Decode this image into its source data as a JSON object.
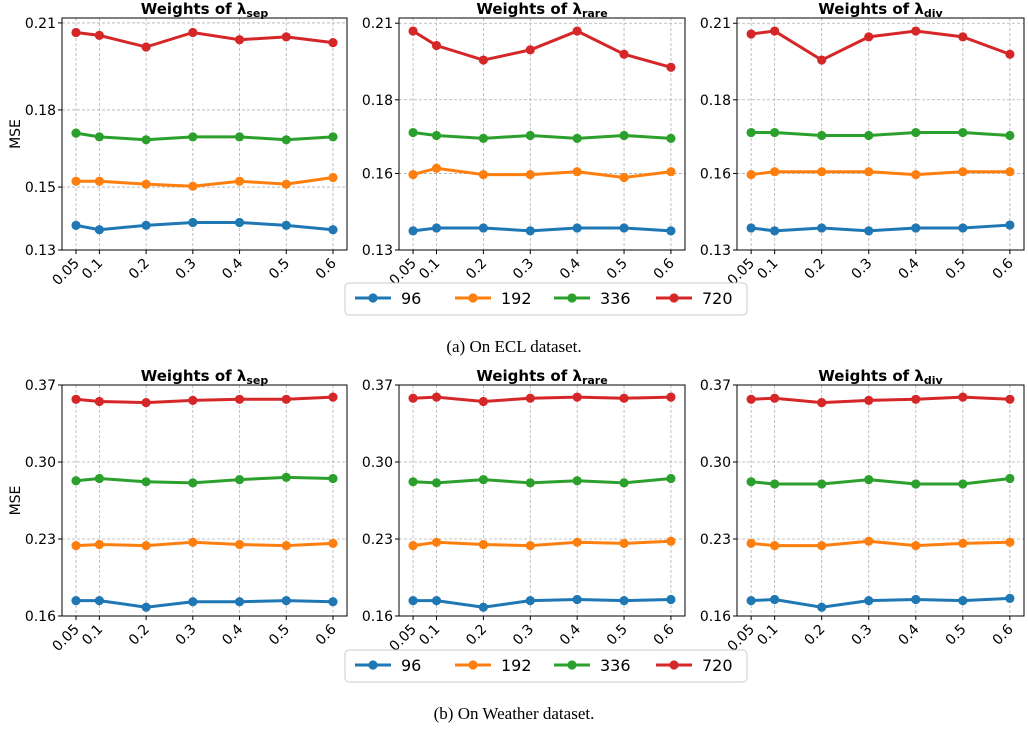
{
  "colors": {
    "96": "#1f77b4",
    "192": "#ff7f0e",
    "336": "#2ca02c",
    "720": "#d62728",
    "grid": "#b0b0b0"
  },
  "ylabel": "MSE",
  "x_ticks": [
    "0.05",
    "0.1",
    "0.2",
    "0.3",
    "0.4",
    "0.5",
    "0.6"
  ],
  "legend": [
    "96",
    "192",
    "336",
    "720"
  ],
  "captions": {
    "a": "(a) On ECL dataset.",
    "b": "(b) On Weather dataset."
  },
  "chart_data": [
    {
      "type": "line",
      "group": "ECL",
      "panel": 0,
      "title": "Weights of λ",
      "title_sub": "sep",
      "x": [
        0.05,
        0.1,
        0.2,
        0.3,
        0.4,
        0.5,
        0.6
      ],
      "ylim": [
        0.13,
        0.21
      ],
      "yticks": [
        "0.13",
        "0.15",
        "0.18",
        "0.21"
      ],
      "yticks_val": [
        0.13,
        0.1517,
        0.1783,
        0.2083
      ],
      "series": [
        {
          "name": "96",
          "values": [
            0.1385,
            0.137,
            0.1385,
            0.1395,
            0.1395,
            0.1385,
            0.137
          ]
        },
        {
          "name": "192",
          "values": [
            0.1537,
            0.1537,
            0.1527,
            0.152,
            0.1537,
            0.1527,
            0.155
          ]
        },
        {
          "name": "336",
          "values": [
            0.1703,
            0.169,
            0.168,
            0.169,
            0.169,
            0.168,
            0.169
          ]
        },
        {
          "name": "720",
          "values": [
            0.205,
            0.204,
            0.2,
            0.205,
            0.2025,
            0.2035,
            0.2015
          ]
        }
      ]
    },
    {
      "type": "line",
      "group": "ECL",
      "panel": 1,
      "title": "Weights of λ",
      "title_sub": "rare",
      "x": [
        0.05,
        0.1,
        0.2,
        0.3,
        0.4,
        0.5,
        0.6
      ],
      "ylim": [
        0.13,
        0.21
      ],
      "yticks": [
        "0.13",
        "0.16",
        "0.18",
        "0.21"
      ],
      "yticks_val": [
        0.13,
        0.1564,
        0.1818,
        0.2082
      ],
      "series": [
        {
          "name": "96",
          "values": [
            0.1366,
            0.1376,
            0.1376,
            0.1366,
            0.1376,
            0.1376,
            0.1366
          ]
        },
        {
          "name": "192",
          "values": [
            0.156,
            0.1582,
            0.156,
            0.156,
            0.157,
            0.155,
            0.157
          ]
        },
        {
          "name": "336",
          "values": [
            0.1705,
            0.1695,
            0.1685,
            0.1695,
            0.1685,
            0.1695,
            0.1685
          ]
        },
        {
          "name": "720",
          "values": [
            0.2055,
            0.2005,
            0.1955,
            0.199,
            0.2055,
            0.1975,
            0.193
          ]
        }
      ]
    },
    {
      "type": "line",
      "group": "ECL",
      "panel": 2,
      "title": "Weights of λ",
      "title_sub": "div",
      "x": [
        0.05,
        0.1,
        0.2,
        0.3,
        0.4,
        0.5,
        0.6
      ],
      "ylim": [
        0.13,
        0.21
      ],
      "yticks": [
        "0.13",
        "0.16",
        "0.18",
        "0.21"
      ],
      "yticks_val": [
        0.13,
        0.1564,
        0.1818,
        0.2082
      ],
      "series": [
        {
          "name": "96",
          "values": [
            0.1376,
            0.1366,
            0.1376,
            0.1366,
            0.1376,
            0.1376,
            0.1386
          ]
        },
        {
          "name": "192",
          "values": [
            0.156,
            0.157,
            0.157,
            0.157,
            0.156,
            0.157,
            0.157
          ]
        },
        {
          "name": "336",
          "values": [
            0.1705,
            0.1705,
            0.1695,
            0.1695,
            0.1705,
            0.1705,
            0.1695
          ]
        },
        {
          "name": "720",
          "values": [
            0.2045,
            0.2055,
            0.1955,
            0.2035,
            0.2055,
            0.2035,
            0.1975
          ]
        }
      ]
    },
    {
      "type": "line",
      "group": "Weather",
      "panel": 0,
      "title": "Weights of λ",
      "title_sub": "sep",
      "x": [
        0.05,
        0.1,
        0.2,
        0.3,
        0.4,
        0.5,
        0.6
      ],
      "ylim": [
        0.16,
        0.37
      ],
      "yticks": [
        "0.16",
        "0.23",
        "0.30",
        "0.37"
      ],
      "yticks_val": [
        0.16,
        0.23,
        0.3,
        0.37
      ],
      "series": [
        {
          "name": "96",
          "values": [
            0.174,
            0.174,
            0.168,
            0.173,
            0.173,
            0.174,
            0.173
          ]
        },
        {
          "name": "192",
          "values": [
            0.224,
            0.225,
            0.224,
            0.227,
            0.225,
            0.224,
            0.226
          ]
        },
        {
          "name": "336",
          "values": [
            0.283,
            0.285,
            0.282,
            0.281,
            0.284,
            0.286,
            0.285
          ]
        },
        {
          "name": "720",
          "values": [
            0.357,
            0.355,
            0.354,
            0.356,
            0.357,
            0.357,
            0.359
          ]
        }
      ]
    },
    {
      "type": "line",
      "group": "Weather",
      "panel": 1,
      "title": "Weights of λ",
      "title_sub": "rare",
      "x": [
        0.05,
        0.1,
        0.2,
        0.3,
        0.4,
        0.5,
        0.6
      ],
      "ylim": [
        0.16,
        0.37
      ],
      "yticks": [
        "0.16",
        "0.23",
        "0.30",
        "0.37"
      ],
      "yticks_val": [
        0.16,
        0.23,
        0.3,
        0.37
      ],
      "series": [
        {
          "name": "96",
          "values": [
            0.174,
            0.174,
            0.168,
            0.174,
            0.175,
            0.174,
            0.175
          ]
        },
        {
          "name": "192",
          "values": [
            0.224,
            0.227,
            0.225,
            0.224,
            0.227,
            0.226,
            0.228
          ]
        },
        {
          "name": "336",
          "values": [
            0.282,
            0.281,
            0.284,
            0.281,
            0.283,
            0.281,
            0.285
          ]
        },
        {
          "name": "720",
          "values": [
            0.358,
            0.359,
            0.355,
            0.358,
            0.359,
            0.358,
            0.359
          ]
        }
      ]
    },
    {
      "type": "line",
      "group": "Weather",
      "panel": 2,
      "title": "Weights of λ",
      "title_sub": "div",
      "x": [
        0.05,
        0.1,
        0.2,
        0.3,
        0.4,
        0.5,
        0.6
      ],
      "ylim": [
        0.16,
        0.37
      ],
      "yticks": [
        "0.16",
        "0.23",
        "0.30",
        "0.37"
      ],
      "yticks_val": [
        0.16,
        0.23,
        0.3,
        0.37
      ],
      "series": [
        {
          "name": "96",
          "values": [
            0.174,
            0.175,
            0.168,
            0.174,
            0.175,
            0.174,
            0.176
          ]
        },
        {
          "name": "192",
          "values": [
            0.226,
            0.224,
            0.224,
            0.228,
            0.224,
            0.226,
            0.227
          ]
        },
        {
          "name": "336",
          "values": [
            0.282,
            0.28,
            0.28,
            0.284,
            0.28,
            0.28,
            0.285
          ]
        },
        {
          "name": "720",
          "values": [
            0.357,
            0.358,
            0.354,
            0.356,
            0.357,
            0.359,
            0.357
          ]
        }
      ]
    }
  ]
}
